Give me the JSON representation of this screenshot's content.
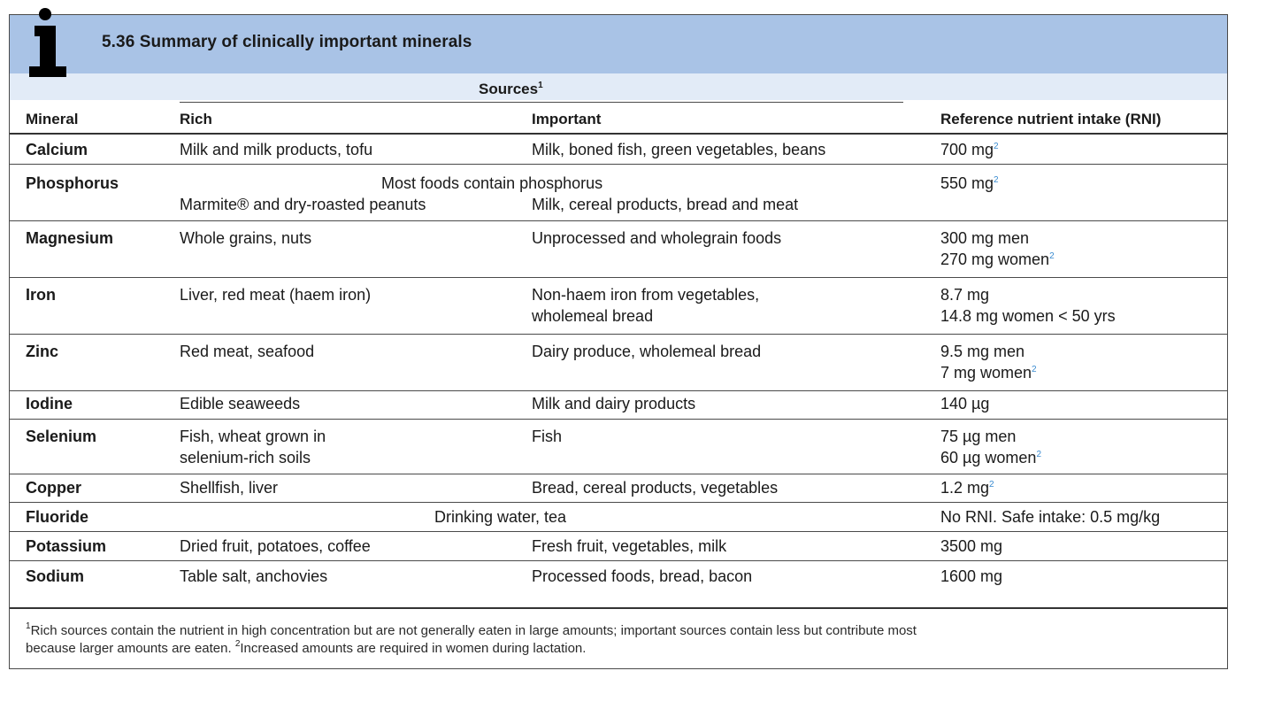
{
  "header": {
    "title": "5.36  Summary of clinically important minerals",
    "icon": "info-icon"
  },
  "columns": {
    "sources_label": "Sources",
    "sources_sup": "1",
    "mineral": "Mineral",
    "rich": "Rich",
    "important": "Important",
    "rni": "Reference nutrient intake (RNI)"
  },
  "rows": [
    {
      "mineral": "Calcium",
      "rich": "Milk and milk products, tofu",
      "important": "Milk, boned fish, green vegetables, beans",
      "rni1": "700 mg",
      "rni1_sup": "2"
    },
    {
      "mineral": "Phosphorus",
      "span": "Most foods contain phosphorus",
      "rich": "Marmite® and dry-roasted peanuts",
      "important": "Milk, cereal products, bread and meat",
      "rni1": "550 mg",
      "rni1_sup": "2"
    },
    {
      "mineral": "Magnesium",
      "rich": "Whole grains, nuts",
      "important": "Unprocessed and wholegrain foods",
      "rni1": "300 mg men",
      "rni2": "270 mg women",
      "rni2_sup": "2"
    },
    {
      "mineral": "Iron",
      "rich": "Liver, red meat (haem iron)",
      "important1": "Non-haem iron from vegetables,",
      "important2": "wholemeal bread",
      "rni1": "8.7 mg",
      "rni2": "14.8 mg women < 50 yrs"
    },
    {
      "mineral": "Zinc",
      "rich": "Red meat, seafood",
      "important": "Dairy produce, wholemeal bread",
      "rni1": "9.5 mg men",
      "rni2": "7 mg women",
      "rni2_sup": "2"
    },
    {
      "mineral": "Iodine",
      "rich": "Edible seaweeds",
      "important": "Milk and dairy products",
      "rni1": "140 µg"
    },
    {
      "mineral": "Selenium",
      "rich1": "Fish, wheat grown in",
      "rich2": "selenium-rich soils",
      "important": "Fish",
      "rni1": "75 µg men",
      "rni2": "60 µg women",
      "rni2_sup": "2"
    },
    {
      "mineral": "Copper",
      "rich": "Shellfish, liver",
      "important": "Bread, cereal products, vegetables",
      "rni1": "1.2 mg",
      "rni1_sup": "2"
    },
    {
      "mineral": "Fluoride",
      "span": "Drinking water, tea",
      "rni1": "No RNI. Safe intake: 0.5 mg/kg"
    },
    {
      "mineral": "Potassium",
      "rich": "Dried fruit, potatoes, coffee",
      "important": "Fresh fruit, vegetables, milk",
      "rni1": "3500 mg"
    },
    {
      "mineral": "Sodium",
      "rich": "Table salt, anchovies",
      "important": "Processed foods, bread, bacon",
      "rni1": "1600 mg"
    }
  ],
  "footnote": {
    "sup1": "1",
    "text1": "Rich sources contain the nutrient in high concentration but are not generally eaten in large amounts; important sources contain less but contribute most",
    "text2a": "because larger amounts are eaten. ",
    "sup2": "2",
    "text2b": "Increased amounts are required in women during lactation."
  },
  "colors": {
    "title_bar": "#a9c3e6",
    "subheader_bar": "#e2ebf7",
    "superscript": "#3a8bd0"
  }
}
